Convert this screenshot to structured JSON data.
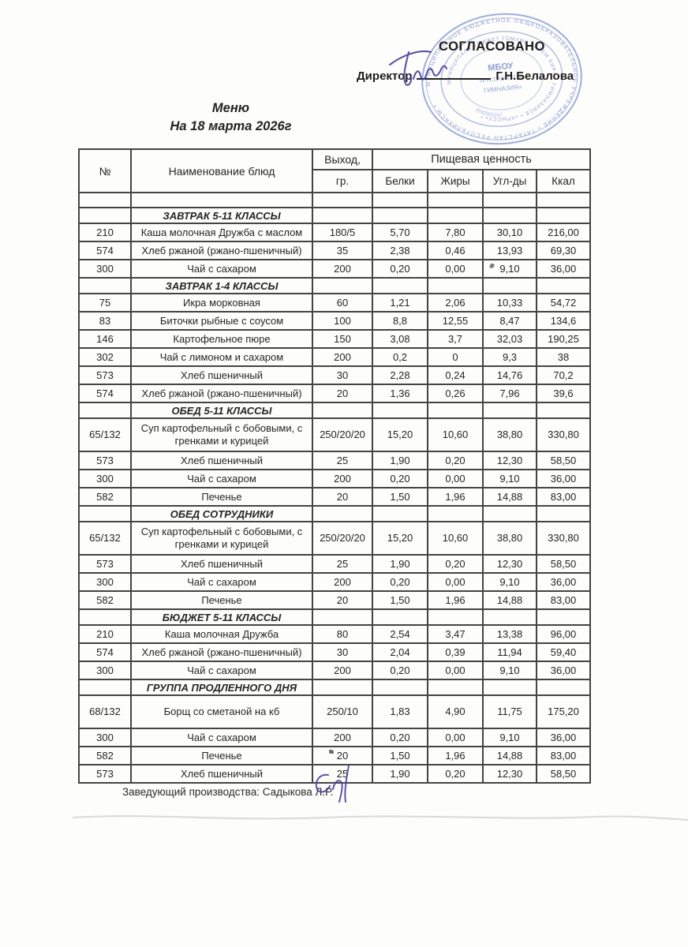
{
  "document": {
    "approved_label": "СОГЛАСОВАНО",
    "director_label": "Директор",
    "director_name": "Г.Н.Белалова",
    "title_line1": "Меню",
    "title_line2": "На 18 марта 2026г",
    "footer_label": "Заведующий производства: Садыкова Л.Р.",
    "stamp": {
      "outer_ring_text": "МУНИЦИПАЛЬНОЕ БЮДЖЕТНОЕ ОБЩЕОБРАЗОВАТЕЛЬНОЕ УЧРЕЖДЕНИЕ • ТАТАРСТАН РЕСПУБЛИКАСЫ •",
      "inner_ring_text": "МУНИЦИПАЛЬ БЮДЖЕТ ГОМУМИ БЕЛЕМ БИРҮ • ГИМНАЗИЯСЕ • «КРЫССУ» •",
      "center_line1": "МБОУ",
      "center_line2": "«РУССКО-ТАТАР.",
      "center_line3": "ГИМНАЗИЯ»",
      "number": "1642003247"
    }
  },
  "table": {
    "headers": {
      "num": "№",
      "name": "Наименование блюд",
      "yield_top": "Выход,",
      "yield_bottom": "гр.",
      "nutrition": "Пищевая ценность",
      "protein": "Белки",
      "fat": "Жиры",
      "carbs": "Угл-ды",
      "kcal": "Ккал"
    },
    "sections": [
      {
        "title": "ЗАВТРАК 5-11 КЛАССЫ",
        "rows": [
          {
            "num": "210",
            "name": "Каша молочная Дружба с маслом",
            "out": "180/5",
            "protein": "5,70",
            "fat": "7,80",
            "carbs": "30,10",
            "kcal": "216,00"
          },
          {
            "num": "574",
            "name": "Хлеб ржаной (ржано-пшеничный)",
            "out": "35",
            "protein": "2,38",
            "fat": "0,46",
            "carbs": "13,93",
            "kcal": "69,30"
          },
          {
            "num": "300",
            "name": "Чай с сахаром",
            "out": "200",
            "protein": "0,20",
            "fat": "0,00",
            "carbs": "9,10",
            "kcal": "36,00"
          }
        ]
      },
      {
        "title": "ЗАВТРАК 1-4 КЛАССЫ",
        "rows": [
          {
            "num": "75",
            "name": "Икра морковная",
            "out": "60",
            "protein": "1,21",
            "fat": "2,06",
            "carbs": "10,33",
            "kcal": "54,72"
          },
          {
            "num": "83",
            "name": "Биточки рыбные с соусом",
            "out": "100",
            "protein": "8,8",
            "fat": "12,55",
            "carbs": "8,47",
            "kcal": "134,6"
          },
          {
            "num": "146",
            "name": "Картофельное пюре",
            "out": "150",
            "protein": "3,08",
            "fat": "3,7",
            "carbs": "32,03",
            "kcal": "190,25"
          },
          {
            "num": "302",
            "name": "Чай с лимоном и сахаром",
            "out": "200",
            "protein": "0,2",
            "fat": "0",
            "carbs": "9,3",
            "kcal": "38"
          },
          {
            "num": "573",
            "name": "Хлеб пшеничный",
            "out": "30",
            "protein": "2,28",
            "fat": "0,24",
            "carbs": "14,76",
            "kcal": "70,2"
          },
          {
            "num": "574",
            "name": "Хлеб ржаной (ржано-пшеничный)",
            "out": "20",
            "protein": "1,36",
            "fat": "0,26",
            "carbs": "7,96",
            "kcal": "39,6"
          }
        ]
      },
      {
        "title": "ОБЕД 5-11 КЛАССЫ",
        "rows": [
          {
            "num": "65/132",
            "name": "Суп картофельный с бобовыми, с гренками и курицей",
            "out": "250/20/20",
            "protein": "15,20",
            "fat": "10,60",
            "carbs": "38,80",
            "kcal": "330,80"
          },
          {
            "num": "573",
            "name": "Хлеб пшеничный",
            "out": "25",
            "protein": "1,90",
            "fat": "0,20",
            "carbs": "12,30",
            "kcal": "58,50"
          },
          {
            "num": "300",
            "name": "Чай с сахаром",
            "out": "200",
            "protein": "0,20",
            "fat": "0,00",
            "carbs": "9,10",
            "kcal": "36,00"
          },
          {
            "num": "582",
            "name": "Печенье",
            "out": "20",
            "protein": "1,50",
            "fat": "1,96",
            "carbs": "14,88",
            "kcal": "83,00"
          }
        ]
      },
      {
        "title": "ОБЕД СОТРУДНИКИ",
        "rows": [
          {
            "num": "65/132",
            "name": "Суп картофельный с бобовыми, с гренками и курицей",
            "out": "250/20/20",
            "protein": "15,20",
            "fat": "10,60",
            "carbs": "38,80",
            "kcal": "330,80"
          },
          {
            "num": "573",
            "name": "Хлеб пшеничный",
            "out": "25",
            "protein": "1,90",
            "fat": "0,20",
            "carbs": "12,30",
            "kcal": "58,50"
          },
          {
            "num": "300",
            "name": "Чай с сахаром",
            "out": "200",
            "protein": "0,20",
            "fat": "0,00",
            "carbs": "9,10",
            "kcal": "36,00"
          },
          {
            "num": "582",
            "name": "Печенье",
            "out": "20",
            "protein": "1,50",
            "fat": "1,96",
            "carbs": "14,88",
            "kcal": "83,00"
          }
        ]
      },
      {
        "title": "БЮДЖЕТ 5-11 КЛАССЫ",
        "rows": [
          {
            "num": "210",
            "name": "Каша молочная Дружба",
            "out": "80",
            "protein": "2,54",
            "fat": "3,47",
            "carbs": "13,38",
            "kcal": "96,00"
          },
          {
            "num": "574",
            "name": "Хлеб ржаной (ржано-пшеничный)",
            "out": "30",
            "protein": "2,04",
            "fat": "0,39",
            "carbs": "11,94",
            "kcal": "59,40"
          },
          {
            "num": "300",
            "name": "Чай с сахаром",
            "out": "200",
            "protein": "0,20",
            "fat": "0,00",
            "carbs": "9,10",
            "kcal": "36,00"
          }
        ]
      },
      {
        "title": "ГРУППА ПРОДЛЕННОГО ДНЯ",
        "rows": [
          {
            "num": "68/132",
            "name": "Борщ со сметаной на кб",
            "out": "250/10",
            "protein": "1,83",
            "fat": "4,90",
            "carbs": "11,75",
            "kcal": "175,20"
          },
          {
            "num": "300",
            "name": "Чай с сахаром",
            "out": "200",
            "protein": "0,20",
            "fat": "0,00",
            "carbs": "9,10",
            "kcal": "36,00"
          },
          {
            "num": "582",
            "name": "Печенье",
            "out": "20",
            "protein": "1,50",
            "fat": "1,96",
            "carbs": "14,88",
            "kcal": "83,00"
          },
          {
            "num": "573",
            "name": "Хлеб пшеничный",
            "out": "25",
            "protein": "1,90",
            "fat": "0,20",
            "carbs": "12,30",
            "kcal": "58,50"
          }
        ]
      }
    ]
  },
  "colors": {
    "stamp_blue": "#6d83c7",
    "signature_ink": "#4b41a0",
    "text": "#262524",
    "border": "#454440"
  }
}
